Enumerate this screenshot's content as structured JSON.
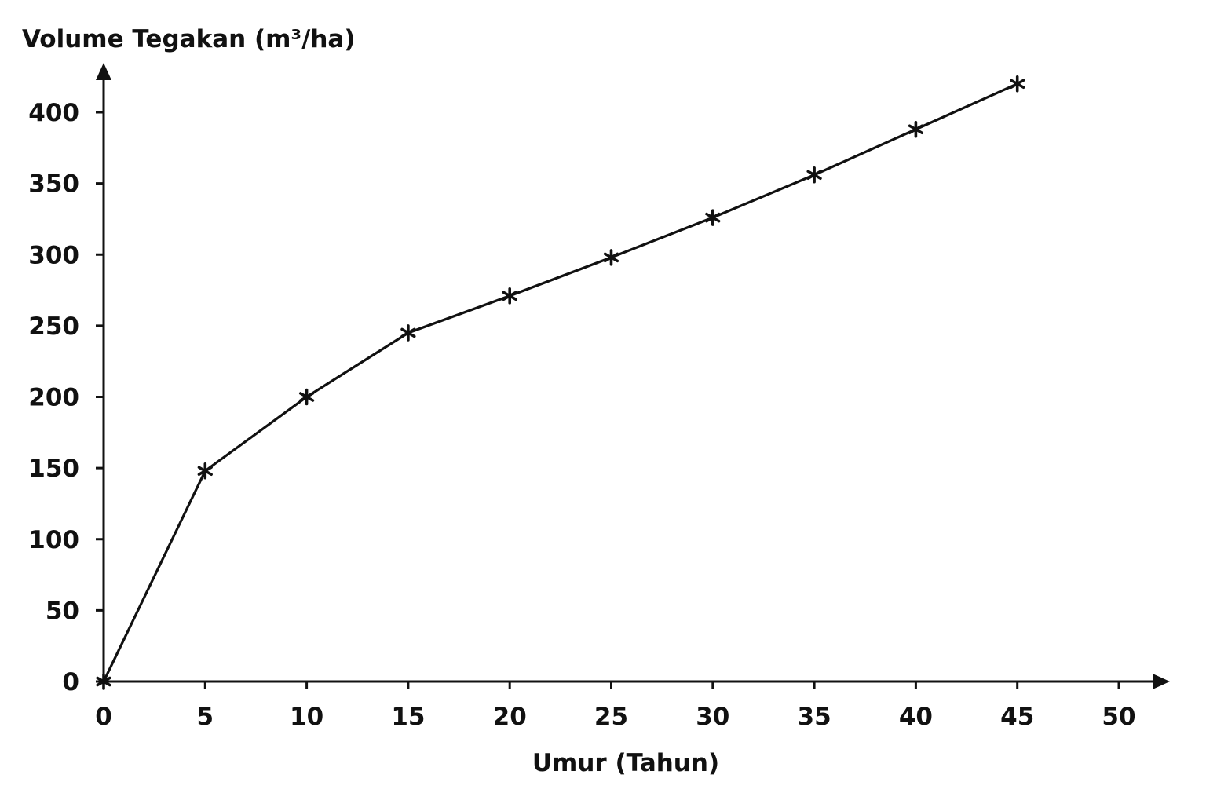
{
  "chart_data": {
    "type": "line",
    "title": "",
    "xlabel": "Umur (Tahun)",
    "ylabel": "Volume Tegakan (m³/ha)",
    "xlim": [
      0,
      50
    ],
    "ylim": [
      0,
      400
    ],
    "x_ticks": [
      "0",
      "5",
      "10",
      "15",
      "20",
      "25",
      "30",
      "35",
      "40",
      "45",
      "50"
    ],
    "y_ticks": [
      "0",
      "50",
      "100",
      "150",
      "200",
      "250",
      "300",
      "350",
      "400"
    ],
    "grid": false,
    "marker": "asterisk",
    "line_color": "#111111",
    "series": [
      {
        "name": "",
        "x": [
          0,
          5,
          10,
          15,
          20,
          25,
          30,
          35,
          40,
          45
        ],
        "values": [
          0,
          148,
          200,
          245,
          271,
          298,
          326,
          356,
          388,
          420
        ]
      }
    ]
  }
}
